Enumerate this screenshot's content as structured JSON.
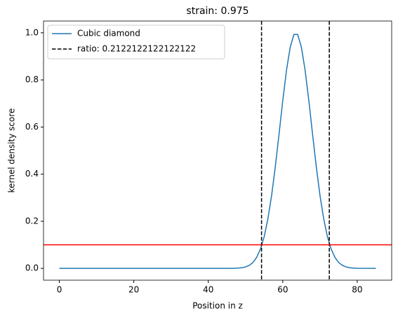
{
  "chart_data": {
    "type": "line",
    "title": "strain: 0.975",
    "xlabel": "Position in z",
    "ylabel": "kernel density score",
    "x": [
      0,
      10,
      20,
      30,
      40,
      45,
      46,
      47,
      48,
      49,
      50,
      51,
      52,
      53,
      54,
      55,
      56,
      57,
      58,
      59,
      60,
      61,
      62,
      63,
      64,
      65,
      66,
      67,
      68,
      69,
      70,
      71,
      72,
      73,
      74,
      75,
      76,
      77,
      78,
      79,
      80,
      85
    ],
    "series": [
      {
        "name": "Cubic diamond",
        "color": "#1f77b4",
        "values": [
          0,
          0,
          0,
          0,
          0,
          0,
          0,
          0.0005,
          0.0013,
          0.0029,
          0.0063,
          0.013,
          0.025,
          0.047,
          0.082,
          0.134,
          0.21,
          0.309,
          0.432,
          0.57,
          0.712,
          0.841,
          0.939,
          0.993,
          0.993,
          0.939,
          0.841,
          0.712,
          0.57,
          0.432,
          0.309,
          0.21,
          0.134,
          0.082,
          0.047,
          0.025,
          0.013,
          0.0063,
          0.0029,
          0.0013,
          0.0005,
          0
        ]
      }
    ],
    "vlines": {
      "name": "ratio: 0.2122122122122122",
      "color": "#000000",
      "values": [
        54.3,
        72.5
      ]
    },
    "hline": {
      "value": 0.1,
      "color": "#ff0000"
    },
    "xlim": [
      -4.25,
      89.25
    ],
    "xticks": [
      0,
      20,
      40,
      60,
      80
    ],
    "ylim": [
      -0.05,
      1.05
    ],
    "yticks": [
      {
        "value": 0,
        "label": "0.0"
      },
      0.2,
      0.4,
      0.6,
      0.8,
      {
        "value": 1,
        "label": "1.0"
      }
    ],
    "legend": "upper left"
  }
}
